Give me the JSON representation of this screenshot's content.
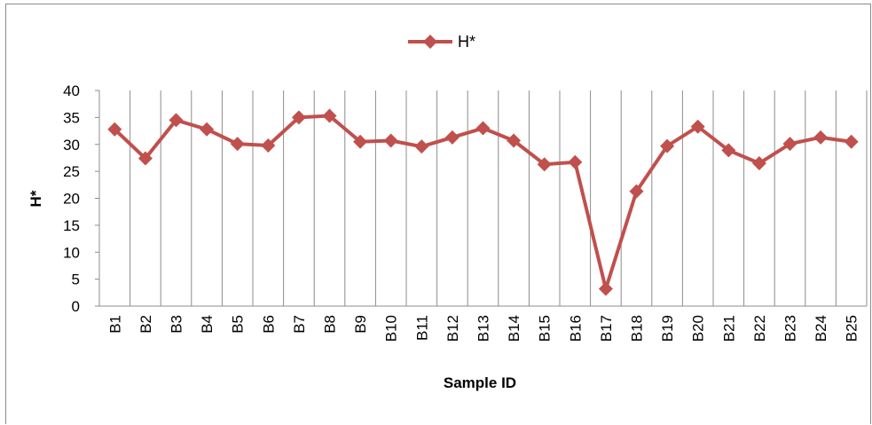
{
  "chart_data": {
    "type": "line",
    "categories": [
      "B1",
      "B2",
      "B3",
      "B4",
      "B5",
      "B6",
      "B7",
      "B8",
      "B9",
      "B10",
      "B11",
      "B12",
      "B13",
      "B14",
      "B15",
      "B16",
      "B17",
      "B18",
      "B19",
      "B20",
      "B21",
      "B22",
      "B23",
      "B24",
      "B25"
    ],
    "series": [
      {
        "name": "H*",
        "color": "#c0504d",
        "marker": "diamond",
        "values": [
          32.8,
          27.4,
          34.5,
          32.8,
          30.1,
          29.8,
          35.0,
          35.3,
          30.5,
          30.7,
          29.6,
          31.3,
          33.0,
          30.7,
          26.3,
          26.7,
          3.2,
          21.3,
          29.7,
          33.3,
          28.9,
          26.5,
          30.1,
          31.3,
          30.5
        ]
      }
    ],
    "xlabel": "Sample ID",
    "ylabel": "H*",
    "ylim": [
      0,
      40
    ],
    "yticks": [
      "0",
      "5",
      "10",
      "15",
      "20",
      "25",
      "30",
      "35",
      "40"
    ],
    "grid": "vertical",
    "legend_position": "top"
  }
}
